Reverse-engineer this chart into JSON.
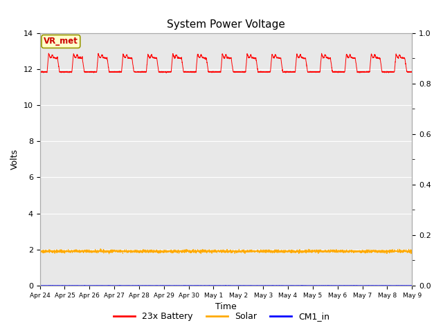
{
  "title": "System Power Voltage",
  "xlabel": "Time",
  "ylabel": "Volts",
  "background_color": "#e8e8e8",
  "ylim_left": [
    0,
    14
  ],
  "ylim_right": [
    0.0,
    1.0
  ],
  "yticks_left": [
    0,
    2,
    4,
    6,
    8,
    10,
    12,
    14
  ],
  "yticks_right": [
    0.0,
    0.2,
    0.4,
    0.6,
    0.8,
    1.0
  ],
  "annotation_text": "VR_met",
  "annotation_color": "#cc0000",
  "annotation_bg": "#ffffcc",
  "annotation_border": "#999900",
  "battery_color": "#ff0000",
  "solar_color": "#ffaa00",
  "cm1_color": "#0000ff",
  "legend_labels": [
    "23x Battery",
    "Solar",
    "CM1_in"
  ],
  "battery_base": 11.85,
  "battery_daytime_high": 12.65,
  "battery_spike": 12.85,
  "solar_base": 1.9,
  "cm1_base": 0.0,
  "x_tick_labels": [
    "Apr 24",
    "Apr 25",
    "Apr 26",
    "Apr 27",
    "Apr 28",
    "Apr 29",
    "Apr 30",
    "May 1",
    "May 2",
    "May 3",
    "May 4",
    "May 5",
    "May 6",
    "May 7",
    "May 8",
    "May 9"
  ]
}
